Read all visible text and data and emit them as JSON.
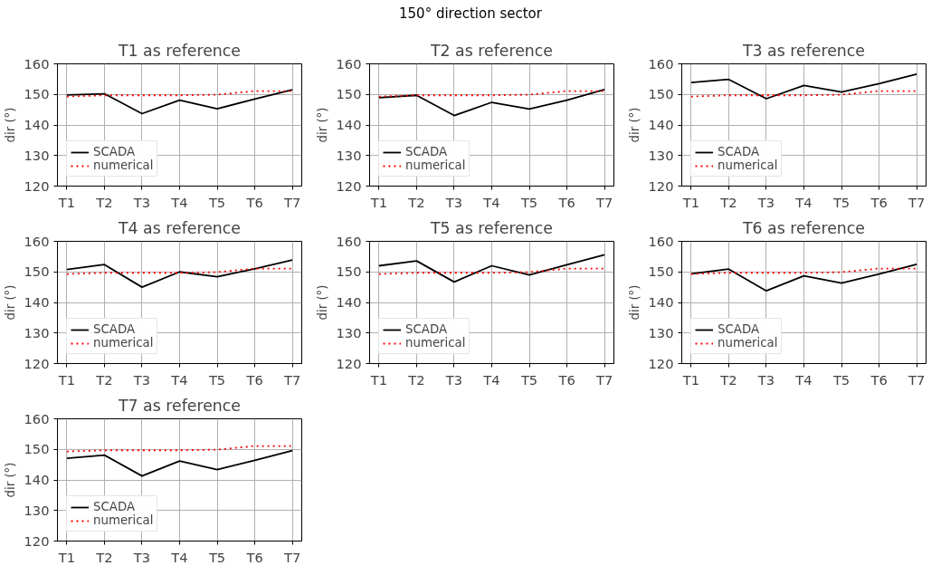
{
  "chart_data": [
    {
      "type": "line",
      "title": "T1 as reference",
      "ylabel": "dir (°)",
      "annotations": [
        "150° direction sector"
      ],
      "categories": [
        "T1",
        "T2",
        "T3",
        "T4",
        "T5",
        "T6",
        "T7"
      ],
      "ylim": [
        120,
        160
      ],
      "yticks": [
        120,
        130,
        140,
        150,
        160
      ],
      "grid": true,
      "legend": "bottom left",
      "series": [
        {
          "name": "SCADA",
          "color": "#000000",
          "line_style": "solid",
          "values": [
            149.8,
            150.2,
            143.7,
            148.1,
            145.3,
            148.5,
            151.5
          ]
        },
        {
          "name": "numerical",
          "color": "#ff0000",
          "line_style": "dotted",
          "values": [
            149.3,
            149.7,
            149.7,
            149.7,
            149.9,
            151.1,
            151.1
          ]
        }
      ]
    },
    {
      "type": "line",
      "title": "T2 as reference",
      "ylabel": "dir (°)",
      "categories": [
        "T1",
        "T2",
        "T3",
        "T4",
        "T5",
        "T6",
        "T7"
      ],
      "ylim": [
        120,
        160
      ],
      "yticks": [
        120,
        130,
        140,
        150,
        160
      ],
      "grid": true,
      "legend": "bottom left",
      "series": [
        {
          "name": "SCADA",
          "color": "#000000",
          "line_style": "solid",
          "values": [
            148.9,
            149.7,
            143.1,
            147.4,
            145.2,
            148.1,
            151.6
          ]
        },
        {
          "name": "numerical",
          "color": "#ff0000",
          "line_style": "dotted",
          "values": [
            149.3,
            149.7,
            149.7,
            149.7,
            149.9,
            151.1,
            151.1
          ]
        }
      ]
    },
    {
      "type": "line",
      "title": "T3 as reference",
      "ylabel": "dir (°)",
      "categories": [
        "T1",
        "T2",
        "T3",
        "T4",
        "T5",
        "T6",
        "T7"
      ],
      "ylim": [
        120,
        160
      ],
      "yticks": [
        120,
        130,
        140,
        150,
        160
      ],
      "grid": true,
      "legend": "bottom left",
      "series": [
        {
          "name": "SCADA",
          "color": "#000000",
          "line_style": "solid",
          "values": [
            153.9,
            154.9,
            148.6,
            152.9,
            150.8,
            153.5,
            156.6
          ]
        },
        {
          "name": "numerical",
          "color": "#ff0000",
          "line_style": "dotted",
          "values": [
            149.3,
            149.7,
            149.7,
            149.7,
            149.9,
            151.1,
            151.1
          ]
        }
      ]
    },
    {
      "type": "line",
      "title": "T4 as reference",
      "ylabel": "dir (°)",
      "categories": [
        "T1",
        "T2",
        "T3",
        "T4",
        "T5",
        "T6",
        "T7"
      ],
      "ylim": [
        120,
        160
      ],
      "yticks": [
        120,
        130,
        140,
        150,
        160
      ],
      "grid": true,
      "legend": "bottom left",
      "series": [
        {
          "name": "SCADA",
          "color": "#000000",
          "line_style": "solid",
          "values": [
            150.8,
            152.4,
            145.0,
            150.0,
            148.4,
            151.0,
            153.9
          ]
        },
        {
          "name": "numerical",
          "color": "#ff0000",
          "line_style": "dotted",
          "values": [
            149.3,
            149.7,
            149.7,
            149.7,
            149.9,
            151.1,
            151.1
          ]
        }
      ]
    },
    {
      "type": "line",
      "title": "T5 as reference",
      "ylabel": "dir (°)",
      "categories": [
        "T1",
        "T2",
        "T3",
        "T4",
        "T5",
        "T6",
        "T7"
      ],
      "ylim": [
        120,
        160
      ],
      "yticks": [
        120,
        130,
        140,
        150,
        160
      ],
      "grid": true,
      "legend": "bottom left",
      "series": [
        {
          "name": "SCADA",
          "color": "#000000",
          "line_style": "solid",
          "values": [
            152.0,
            153.6,
            146.7,
            152.0,
            149.0,
            152.3,
            155.6
          ]
        },
        {
          "name": "numerical",
          "color": "#ff0000",
          "line_style": "dotted",
          "values": [
            149.3,
            149.7,
            149.7,
            149.7,
            149.9,
            151.1,
            151.1
          ]
        }
      ]
    },
    {
      "type": "line",
      "title": "T6 as reference",
      "ylabel": "dir (°)",
      "categories": [
        "T1",
        "T2",
        "T3",
        "T4",
        "T5",
        "T6",
        "T7"
      ],
      "ylim": [
        120,
        160
      ],
      "yticks": [
        120,
        130,
        140,
        150,
        160
      ],
      "grid": true,
      "legend": "bottom left",
      "series": [
        {
          "name": "SCADA",
          "color": "#000000",
          "line_style": "solid",
          "values": [
            149.4,
            150.9,
            143.8,
            148.7,
            146.3,
            149.3,
            152.5
          ]
        },
        {
          "name": "numerical",
          "color": "#ff0000",
          "line_style": "dotted",
          "values": [
            149.3,
            149.7,
            149.7,
            149.7,
            149.9,
            151.1,
            151.1
          ]
        }
      ]
    },
    {
      "type": "line",
      "title": "T7 as reference",
      "ylabel": "dir (°)",
      "categories": [
        "T1",
        "T2",
        "T3",
        "T4",
        "T5",
        "T6",
        "T7"
      ],
      "ylim": [
        120,
        160
      ],
      "yticks": [
        120,
        130,
        140,
        150,
        160
      ],
      "grid": true,
      "legend": "bottom left",
      "series": [
        {
          "name": "SCADA",
          "color": "#000000",
          "line_style": "solid",
          "values": [
            147.1,
            148.1,
            141.3,
            146.2,
            143.4,
            146.4,
            149.6
          ]
        },
        {
          "name": "numerical",
          "color": "#ff0000",
          "line_style": "dotted",
          "values": [
            149.3,
            149.7,
            149.7,
            149.7,
            149.9,
            151.1,
            151.1
          ]
        }
      ]
    }
  ]
}
